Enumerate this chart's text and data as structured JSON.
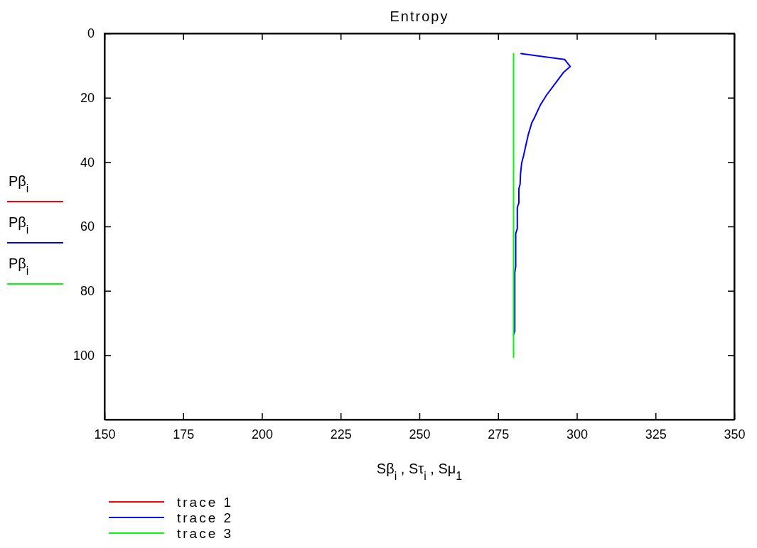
{
  "chart_data": {
    "type": "line",
    "title": "Entropy",
    "xlabel": "Sβ$_{i}$ , Sτ$_{i}$ , Sμ$_{1}$",
    "ylabel": "Pβ$_{i}$",
    "xlim": [
      150,
      350
    ],
    "xticks": [
      150,
      175,
      200,
      225,
      250,
      275,
      300,
      325,
      350
    ],
    "ylim": [
      120,
      0
    ],
    "yticks": [
      0,
      20,
      40,
      60,
      80,
      100
    ],
    "grid": false,
    "legend": "bottom left",
    "line_style": "solid",
    "marker": "none",
    "series": [
      {
        "name": "trace 1",
        "color": "#ff0000",
        "x": [
          null,
          null
        ],
        "values": [
          null,
          null
        ]
      },
      {
        "name": "trace 2",
        "color": "#0000ff",
        "x": [
          282.3,
          296.1,
          297.9,
          295.9,
          292.5,
          290.3,
          288.4,
          286.5,
          285.7,
          284.6,
          283.9,
          283.1,
          282.5,
          282.1,
          282.0,
          281.6,
          281.6,
          281.1,
          281.1,
          280.6,
          280.6,
          280.3,
          280.3,
          279.9
        ],
        "values": [
          6.3,
          8.1,
          10.3,
          12.0,
          16.4,
          19.3,
          22.3,
          26.3,
          27.8,
          31.4,
          34.4,
          38.0,
          40.2,
          43.9,
          46.8,
          48.3,
          52.7,
          54.1,
          60.7,
          62.2,
          72.5,
          74.3,
          92.6,
          93.7
        ]
      },
      {
        "name": "trace 3",
        "color": "#00ff00",
        "x": [
          279.9,
          279.9
        ],
        "values": [
          6.3,
          100.7
        ]
      }
    ]
  }
}
